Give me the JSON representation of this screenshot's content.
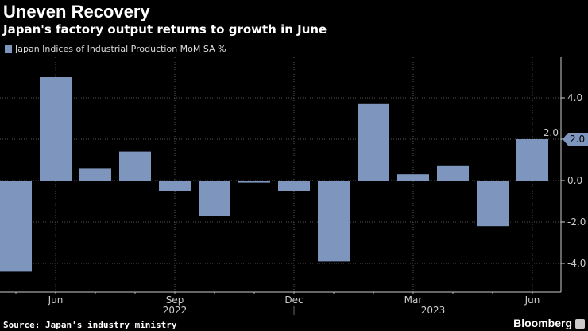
{
  "header": {
    "title": "Uneven Recovery",
    "subtitle": "Japan's factory output returns to growth in June"
  },
  "footer": {
    "source": "Source: Japan's industry ministry",
    "brand": "Bloomberg"
  },
  "chart_data": {
    "type": "bar",
    "categories": [
      "May 2022",
      "Jun 2022",
      "Jul 2022",
      "Aug 2022",
      "Sep 2022",
      "Oct 2022",
      "Nov 2022",
      "Dec 2022",
      "Jan 2023",
      "Feb 2023",
      "Mar 2023",
      "Apr 2023",
      "May 2023",
      "Jun 2023"
    ],
    "series": [
      {
        "name": "Japan Indices of Industrial Production MoM SA %",
        "values": [
          -4.4,
          5.0,
          0.6,
          1.4,
          -0.5,
          -1.7,
          -0.1,
          -0.5,
          -3.9,
          3.7,
          0.3,
          0.7,
          -2.2,
          2.0
        ]
      }
    ],
    "x_tick_labels": [
      {
        "label": "Jun",
        "index": 1
      },
      {
        "label": "Sep",
        "index": 4
      },
      {
        "label": "Dec",
        "index": 7
      },
      {
        "label": "Mar",
        "index": 10
      },
      {
        "label": "Jun",
        "index": 13
      }
    ],
    "year_labels": [
      {
        "label": "2022",
        "index": 4
      },
      {
        "label": "2023",
        "index": 10.5
      }
    ],
    "y_ticks": [
      "4.0",
      "2.0",
      "0.0",
      "-2.0",
      "-4.0"
    ],
    "y_tick_values": [
      4,
      2,
      0,
      -2,
      -4
    ],
    "ylim": [
      -5.4,
      6
    ],
    "last_value_label": "2.0",
    "grid": true,
    "y_axis_side": "right",
    "legend_position": "top-left",
    "colors": {
      "bar": "#7e95bd",
      "background": "#000000"
    }
  }
}
